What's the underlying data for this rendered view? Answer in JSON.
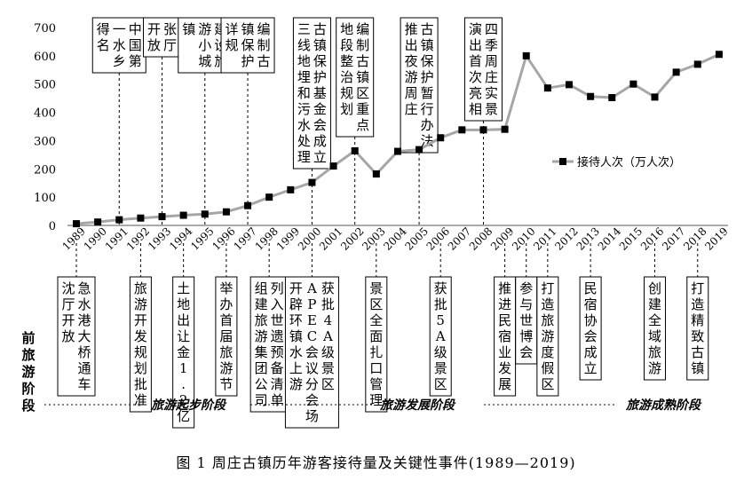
{
  "caption": "图 1 周庄古镇历年游客接待量及关键性事件(1989—2019)",
  "chart_data": {
    "type": "line",
    "ylim": [
      0,
      700
    ],
    "yticks": [
      0,
      100,
      200,
      300,
      400,
      500,
      600,
      700
    ],
    "x": [
      1989,
      1990,
      1991,
      1992,
      1993,
      1994,
      1995,
      1996,
      1997,
      1998,
      1999,
      2000,
      2001,
      2002,
      2003,
      2004,
      2005,
      2006,
      2007,
      2008,
      2009,
      2010,
      2011,
      2012,
      2013,
      2014,
      2015,
      2016,
      2017,
      2018,
      2019
    ],
    "series": [
      {
        "name": "接待人次（万人次）",
        "color": "#a6a6a6",
        "marker_color": "#000000",
        "values": [
          6,
          12,
          20,
          26,
          31,
          36,
          40,
          48,
          70,
          100,
          126,
          152,
          210,
          264,
          182,
          262,
          268,
          310,
          338,
          338,
          340,
          600,
          486,
          498,
          456,
          452,
          500,
          454,
          542,
          570,
          605
        ]
      }
    ],
    "legend": {
      "label": "接待人次（万人次）",
      "position": "right"
    },
    "grid": false,
    "events_above": [
      {
        "year": 1991,
        "lines": [
          "中国第",
          "一水乡",
          "得名"
        ]
      },
      {
        "year": 1993,
        "lines": [
          "张厅",
          "开放"
        ]
      },
      {
        "year": 1995,
        "lines": [
          "建设旅",
          "游小城",
          "镇"
        ]
      },
      {
        "year": 1997,
        "lines": [
          "编制古",
          "镇保护",
          "详规"
        ]
      },
      {
        "year": 2000,
        "lines": [
          "古镇保护基金会成立",
          "三线地埋和污水处理"
        ]
      },
      {
        "year": 2002,
        "lines": [
          "编制古镇区重点",
          "地段整治规划"
        ]
      },
      {
        "year": 2005,
        "lines": [
          "古镇保护暂行办法",
          "推出夜游周庄"
        ]
      },
      {
        "year": 2008,
        "lines": [
          "四季周庄实景",
          "演出首次亮相"
        ]
      }
    ],
    "events_below": [
      {
        "year": 1989,
        "lines": [
          "急水港大桥通车",
          "沈厅开放"
        ]
      },
      {
        "year": 1992,
        "lines": [
          "旅游开发规划批准"
        ]
      },
      {
        "year": 1994,
        "lines": [
          "土地出让金1.2亿"
        ]
      },
      {
        "year": 1996,
        "lines": [
          "举办首届旅游节"
        ]
      },
      {
        "year": 1998,
        "lines": [
          "列入世遗预备清单",
          "组建旅游集团公司"
        ]
      },
      {
        "year": 2000,
        "lines": [
          "获批4A级景区",
          "APEC会议分会场",
          "开辟环镇水上游"
        ]
      },
      {
        "year": 2003,
        "lines": [
          "景区全面扎口管理"
        ]
      },
      {
        "year": 2006,
        "lines": [
          "获批5A级景区"
        ]
      },
      {
        "year": 2009,
        "lines": [
          "推进民宿业发展"
        ]
      },
      {
        "year": 2010,
        "lines": [
          "参与世博会"
        ]
      },
      {
        "year": 2011,
        "lines": [
          "打造旅游度假区"
        ]
      },
      {
        "year": 2013,
        "lines": [
          "民宿协会成立"
        ]
      },
      {
        "year": 2016,
        "lines": [
          "创建全域旅游"
        ]
      },
      {
        "year": 2018,
        "lines": [
          "打造精致古镇"
        ]
      }
    ],
    "stages": {
      "pre": [
        "前",
        "旅",
        "游",
        "阶",
        "段"
      ],
      "start": "旅游起步阶段",
      "develop": "旅游发展阶段",
      "mature": "旅游成熟阶段"
    }
  }
}
